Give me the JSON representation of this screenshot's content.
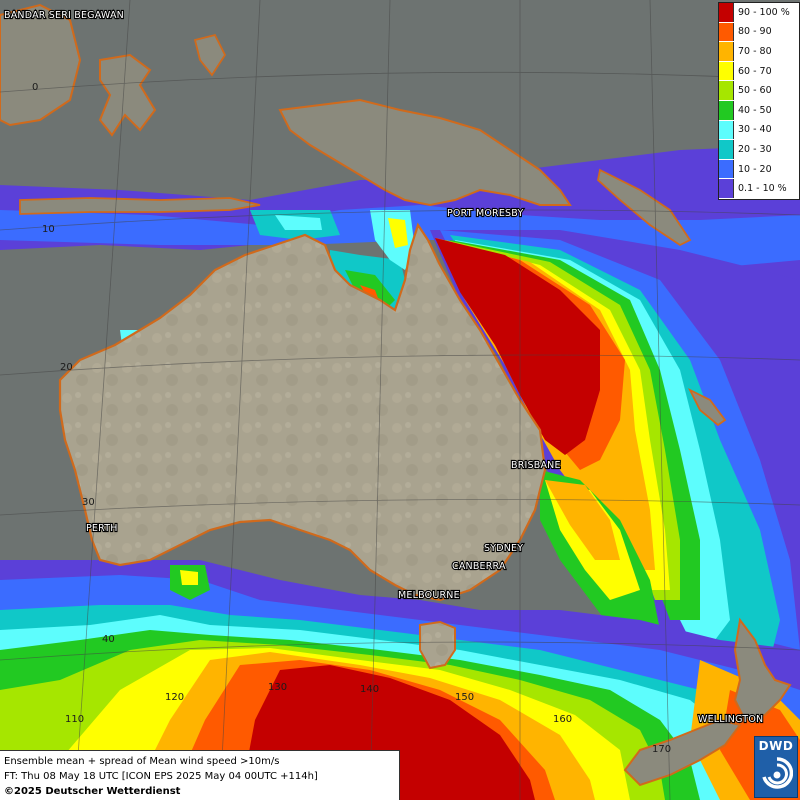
{
  "map": {
    "cities": [
      {
        "key": "bandar",
        "name": "BANDAR SERI BEGAWAN"
      },
      {
        "key": "port_moresby",
        "name": "PORT MORESBY"
      },
      {
        "key": "brisbane",
        "name": "BRISBANE"
      },
      {
        "key": "sydney",
        "name": "SYDNEY"
      },
      {
        "key": "canberra",
        "name": "CANBERRA"
      },
      {
        "key": "melbourne",
        "name": "MELBOURNE"
      },
      {
        "key": "perth",
        "name": "PERTH"
      },
      {
        "key": "wellington",
        "name": "WELLINGTON"
      }
    ],
    "latitude_labels": [
      "0",
      "10",
      "20",
      "30",
      "40"
    ],
    "longitude_labels": [
      "110",
      "120",
      "130",
      "140",
      "150",
      "160",
      "170"
    ]
  },
  "legend": {
    "items": [
      {
        "label": "90 - 100 %",
        "color": "#c40000"
      },
      {
        "label": "80 - 90",
        "color": "#ff5a00"
      },
      {
        "label": "70 - 80",
        "color": "#ffb400"
      },
      {
        "label": "60 - 70",
        "color": "#ffff00"
      },
      {
        "label": "50 - 60",
        "color": "#a6e600"
      },
      {
        "label": "40 - 50",
        "color": "#22c922"
      },
      {
        "label": "30 - 40",
        "color": "#5dfdfd"
      },
      {
        "label": "20 - 30",
        "color": "#10c8c8"
      },
      {
        "label": "10 - 20",
        "color": "#3b6cff"
      },
      {
        "label": "0.1 - 10 %",
        "color": "#5b40d8"
      }
    ]
  },
  "info": {
    "line1": "Ensemble mean + spread of Mean wind speed >10m/s",
    "line2": "FT: Thu 08 May 18 UTC [ICON EPS 2025 May 04 00UTC +114h]",
    "line3": "©2025 Deutscher Wetterdienst"
  },
  "logo": {
    "text": "DWD"
  }
}
